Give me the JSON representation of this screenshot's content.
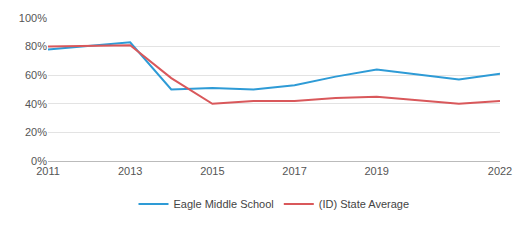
{
  "chart_data": {
    "type": "line",
    "x": [
      2011,
      2013,
      2014,
      2015,
      2016,
      2017,
      2018,
      2019,
      2021,
      2022
    ],
    "series": [
      {
        "name": "Eagle Middle School",
        "color": "#2e9bd6",
        "values": [
          78,
          83,
          50,
          51,
          50,
          53,
          59,
          64,
          57,
          61
        ]
      },
      {
        "name": "(ID) State Average",
        "color": "#d9585b",
        "values": [
          80,
          81,
          58,
          40,
          42,
          42,
          44,
          45,
          40,
          42
        ]
      }
    ],
    "xlim": [
      2011,
      2022
    ],
    "xticks": [
      2011,
      2013,
      2015,
      2017,
      2019,
      2022
    ],
    "ylim": [
      0,
      100
    ],
    "yticks": [
      {
        "value": 0,
        "label": "0%"
      },
      {
        "value": 20,
        "label": "20%"
      },
      {
        "value": 40,
        "label": "40%"
      },
      {
        "value": 60,
        "label": "60%"
      },
      {
        "value": 80,
        "label": "80%"
      },
      {
        "value": 100,
        "label": "100%"
      }
    ],
    "grid": true,
    "legend": "bottom"
  }
}
